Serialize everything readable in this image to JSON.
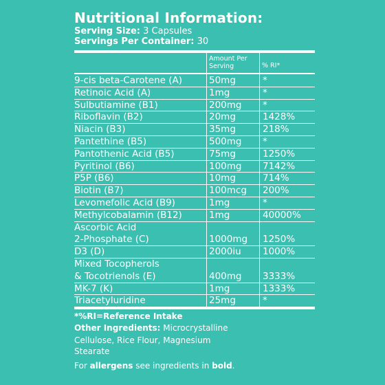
{
  "title": "Nutritional Information:",
  "serving_size_label": "Serving Size:",
  "serving_size_value": "3 Capsules",
  "servings_label": "Servings Per Container:",
  "servings_value": "30",
  "columns": {
    "amount_line1": "Amount Per",
    "amount_line2": "Serving",
    "ri": "% RI*"
  },
  "rows": [
    {
      "name": "9-cis beta-Carotene (A)",
      "amount": "50mg",
      "ri": "*"
    },
    {
      "name": "Retinoic Acid (A)",
      "amount": "1mg",
      "ri": "*"
    },
    {
      "name": "Sulbutiamine (B1)",
      "amount": "200mg",
      "ri": "*"
    },
    {
      "name": "Riboflavin (B2)",
      "amount": "20mg",
      "ri": "1428%"
    },
    {
      "name": "Niacin (B3)",
      "amount": "35mg",
      "ri": "218%"
    },
    {
      "name": "Pantethine (B5)",
      "amount": "500mg",
      "ri": "*"
    },
    {
      "name": "Pantothenic Acid (B5)",
      "amount": "75mg",
      "ri": "1250%"
    },
    {
      "name": "Pyritinol (B6)",
      "amount": "100mg",
      "ri": "7142%"
    },
    {
      "name": "P5P (B6)",
      "amount": "10mg",
      "ri": "714%"
    },
    {
      "name": "Biotin (B7)",
      "amount": "100mcg",
      "ri": "200%"
    },
    {
      "name": "Levomefolic Acid (B9)",
      "amount": "1mg",
      "ri": "*"
    },
    {
      "name": "Methylcobalamin (B12)",
      "amount": "1mg",
      "ri": "40000%"
    },
    {
      "name": "Ascorbic Acid",
      "name2": "2-Phosphate (C)",
      "amount": "1000mg",
      "ri": "1250%"
    },
    {
      "name": "D3 (D)",
      "amount": "2000iu",
      "ri": "1000%"
    },
    {
      "name": "Mixed Tocopherols",
      "name2": "& Tocotrienols (E)",
      "amount": "400mg",
      "ri": "3333%"
    },
    {
      "name": "MK-7 (K)",
      "amount": "1mg",
      "ri": "1333%"
    },
    {
      "name": "Triacetyluridine",
      "amount": "25mg",
      "ri": "*"
    }
  ],
  "footer": {
    "ri_note": "*%RI=Reference Intake",
    "other_label": "Other Ingredients:",
    "other_text1": "Microcrystalline",
    "other_text2": "Cellulose, Rice Flour, Magnesium",
    "other_text3": "Stearate",
    "allergen_pre": "For",
    "allergen_bold1": "allergens",
    "allergen_mid": "see ingredients in",
    "allergen_bold2": "bold",
    "allergen_end": "."
  }
}
